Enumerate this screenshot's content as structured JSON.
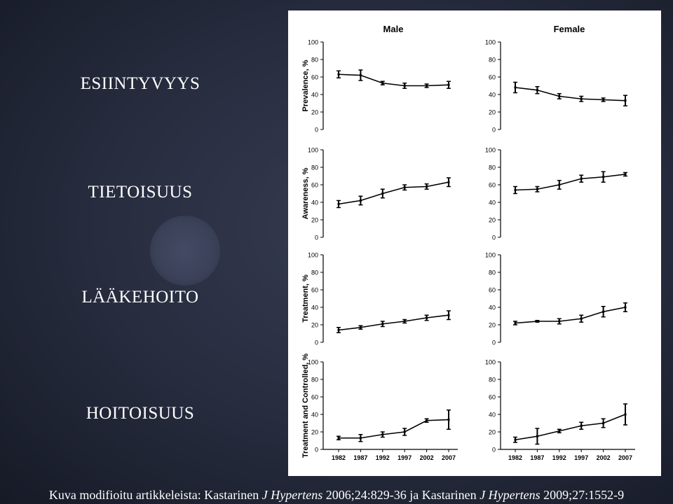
{
  "slide": {
    "labels": [
      "ESIINTYVYYS",
      "TIETOISUUS",
      "LÄÄKEHOITO",
      "HOITOISUUS"
    ],
    "caption": {
      "prefix": "Kuva modifioitu artikkeleista: Kastarinen ",
      "journal1": "J Hypertens",
      "ref1": " 2006;24:829-36 ja Kastarinen ",
      "journal2": "J Hypertens",
      "ref2": " 2009;27:1552-9"
    }
  },
  "chart_data": {
    "type": "line",
    "columns": [
      "Male",
      "Female"
    ],
    "rows": [
      "Prevalence, %",
      "Awareness, %",
      "Treatment, %",
      "Treatment and Controlled, %"
    ],
    "x": [
      "1982",
      "1987",
      "1992",
      "1997",
      "2002",
      "2007"
    ],
    "ylim": [
      0,
      100
    ],
    "yticks": [
      0,
      20,
      40,
      60,
      80,
      100
    ],
    "panels": [
      {
        "row": "Prevalence, %",
        "column": "Male",
        "values": [
          63,
          62,
          53,
          50,
          50,
          51
        ],
        "err": [
          4,
          6,
          2,
          3,
          2,
          4
        ]
      },
      {
        "row": "Prevalence, %",
        "column": "Female",
        "values": [
          48,
          45,
          38,
          35,
          34,
          33
        ],
        "err": [
          6,
          4,
          3,
          3,
          2,
          6
        ]
      },
      {
        "row": "Awareness, %",
        "column": "Male",
        "values": [
          38,
          42,
          50,
          57,
          58,
          63
        ],
        "err": [
          4,
          5,
          5,
          3,
          3,
          5
        ]
      },
      {
        "row": "Awareness, %",
        "column": "Female",
        "values": [
          54,
          55,
          60,
          67,
          69,
          72
        ],
        "err": [
          4,
          3,
          5,
          4,
          6,
          2
        ]
      },
      {
        "row": "Treatment, %",
        "column": "Male",
        "values": [
          14,
          17,
          21,
          24,
          28,
          31
        ],
        "err": [
          3,
          2,
          3,
          2,
          3,
          5
        ]
      },
      {
        "row": "Treatment, %",
        "column": "Female",
        "values": [
          22,
          24,
          24,
          27,
          35,
          40
        ],
        "err": [
          2,
          1,
          3,
          4,
          6,
          5
        ]
      },
      {
        "row": "Treatment and Controlled, %",
        "column": "Male",
        "values": [
          13,
          13,
          17,
          20,
          33,
          34
        ],
        "err": [
          2,
          4,
          3,
          4,
          2,
          11
        ]
      },
      {
        "row": "Treatment and Controlled, %",
        "column": "Female",
        "values": [
          11,
          15,
          21,
          27,
          30,
          40
        ],
        "err": [
          3,
          9,
          2,
          4,
          5,
          12
        ]
      }
    ]
  }
}
